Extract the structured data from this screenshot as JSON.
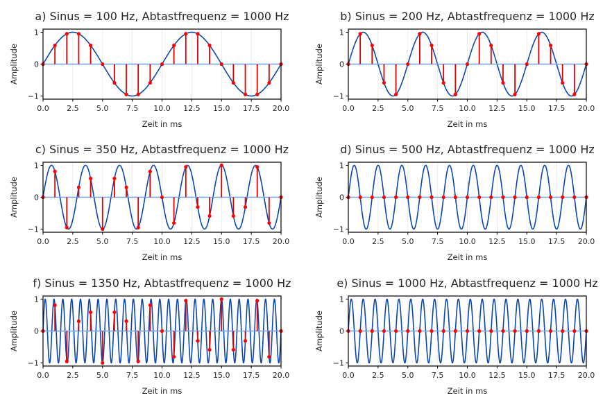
{
  "figure": {
    "xlabel": "Zeit in ms",
    "ylabel": "Amplitude",
    "colors": {
      "sine": "#0a47b0",
      "stem": "#e00000",
      "marker": "#ff0000",
      "baseline": "#6fa0e0",
      "grid": "#e8e8e8",
      "axis": "#000000"
    }
  },
  "chart_data": [
    {
      "type": "line",
      "title": "a) Sinus = 100 Hz, Abtastfrequenz = 1000 Hz",
      "signal_hz": 100,
      "sample_rate_hz": 1000,
      "xlabel": "Zeit in ms",
      "ylabel": "Amplitude",
      "xlim": [
        0,
        20
      ],
      "ylim": [
        -1,
        1
      ],
      "xticks": [
        "0.0",
        "2.5",
        "5.0",
        "7.5",
        "10.0",
        "12.5",
        "15.0",
        "17.5",
        "20.0"
      ],
      "yticks": [
        "1",
        "0",
        "−1"
      ],
      "samples_x_ms": [
        0,
        1,
        2,
        3,
        4,
        5,
        6,
        7,
        8,
        9,
        10,
        11,
        12,
        13,
        14,
        15,
        16,
        17,
        18,
        19,
        20
      ],
      "samples_y": [
        0,
        0.588,
        0.951,
        0.951,
        0.588,
        0,
        -0.588,
        -0.951,
        -0.951,
        -0.588,
        0,
        0.588,
        0.951,
        0.951,
        0.588,
        0,
        -0.588,
        -0.951,
        -0.951,
        -0.588,
        0
      ],
      "grid": true
    },
    {
      "type": "line",
      "title": "b) Sinus = 200 Hz, Abtastfrequenz = 1000 Hz",
      "signal_hz": 200,
      "sample_rate_hz": 1000,
      "xlabel": "Zeit in ms",
      "ylabel": "Amplitude",
      "xlim": [
        0,
        20
      ],
      "ylim": [
        -1,
        1
      ],
      "xticks": [
        "0.0",
        "2.5",
        "5.0",
        "7.5",
        "10.0",
        "12.5",
        "15.0",
        "17.5",
        "20.0"
      ],
      "yticks": [
        "1",
        "0",
        "−1"
      ],
      "samples_x_ms": [
        0,
        1,
        2,
        3,
        4,
        5,
        6,
        7,
        8,
        9,
        10,
        11,
        12,
        13,
        14,
        15,
        16,
        17,
        18,
        19,
        20
      ],
      "samples_y": [
        0,
        0.951,
        0.588,
        -0.588,
        -0.951,
        0,
        0.951,
        0.588,
        -0.588,
        -0.951,
        0,
        0.951,
        0.588,
        -0.588,
        -0.951,
        0,
        0.951,
        0.588,
        -0.588,
        -0.951,
        0
      ],
      "grid": true
    },
    {
      "type": "line",
      "title": "c) Sinus = 350 Hz, Abtastfrequenz = 1000 Hz",
      "signal_hz": 350,
      "sample_rate_hz": 1000,
      "xlabel": "Zeit in ms",
      "ylabel": "Amplitude",
      "xlim": [
        0,
        20
      ],
      "ylim": [
        -1,
        1
      ],
      "xticks": [
        "0.0",
        "2.5",
        "5.0",
        "7.5",
        "10.0",
        "12.5",
        "15.0",
        "17.5",
        "20.0"
      ],
      "yticks": [
        "1",
        "0",
        "−1"
      ],
      "samples_x_ms": [
        0,
        1,
        2,
        3,
        4,
        5,
        6,
        7,
        8,
        9,
        10,
        11,
        12,
        13,
        14,
        15,
        16,
        17,
        18,
        19,
        20
      ],
      "samples_y": [
        0,
        0.809,
        -0.951,
        0.309,
        0.588,
        -1,
        0.588,
        0.309,
        -0.951,
        0.809,
        0,
        -0.809,
        0.951,
        -0.309,
        -0.588,
        1,
        -0.588,
        -0.309,
        0.951,
        -0.809,
        0
      ],
      "grid": true
    },
    {
      "type": "line",
      "title": "d) Sinus = 500 Hz, Abtastfrequenz = 1000 Hz",
      "signal_hz": 500,
      "sample_rate_hz": 1000,
      "xlabel": "Zeit in ms",
      "ylabel": "Amplitude",
      "xlim": [
        0,
        20
      ],
      "ylim": [
        -1,
        1
      ],
      "xticks": [
        "0.0",
        "2.5",
        "5.0",
        "7.5",
        "10.0",
        "12.5",
        "15.0",
        "17.5",
        "20.0"
      ],
      "yticks": [
        "1",
        "0",
        "−1"
      ],
      "samples_x_ms": [
        0,
        1,
        2,
        3,
        4,
        5,
        6,
        7,
        8,
        9,
        10,
        11,
        12,
        13,
        14,
        15,
        16,
        17,
        18,
        19,
        20
      ],
      "samples_y": [
        0,
        0,
        0,
        0,
        0,
        0,
        0,
        0,
        0,
        0,
        0,
        0,
        0,
        0,
        0,
        0,
        0,
        0,
        0,
        0,
        0
      ],
      "grid": true
    },
    {
      "type": "line",
      "title": "f) Sinus = 1350 Hz, Abtastfrequenz = 1000 Hz",
      "signal_hz": 1350,
      "sample_rate_hz": 1000,
      "xlabel": "Zeit in ms",
      "ylabel": "Amplitude",
      "xlim": [
        0,
        20
      ],
      "ylim": [
        -1,
        1
      ],
      "xticks": [
        "0.0",
        "2.5",
        "5.0",
        "7.5",
        "10.0",
        "12.5",
        "15.0",
        "17.5",
        "20.0"
      ],
      "yticks": [
        "1",
        "0",
        "−1"
      ],
      "samples_x_ms": [
        0,
        1,
        2,
        3,
        4,
        5,
        6,
        7,
        8,
        9,
        10,
        11,
        12,
        13,
        14,
        15,
        16,
        17,
        18,
        19,
        20
      ],
      "samples_y": [
        0,
        0.809,
        -0.951,
        0.309,
        0.588,
        -1,
        0.588,
        0.309,
        -0.951,
        0.809,
        0,
        -0.809,
        0.951,
        -0.309,
        -0.588,
        1,
        -0.588,
        -0.309,
        0.951,
        -0.809,
        0
      ],
      "grid": true
    },
    {
      "type": "line",
      "title": "e) Sinus = 1000 Hz, Abtastfrequenz = 1000 Hz",
      "signal_hz": 1000,
      "sample_rate_hz": 1000,
      "xlabel": "Zeit in ms",
      "ylabel": "Amplitude",
      "xlim": [
        0,
        20
      ],
      "ylim": [
        -1,
        1
      ],
      "xticks": [
        "0.0",
        "2.5",
        "5.0",
        "7.5",
        "10.0",
        "12.5",
        "15.0",
        "17.5",
        "20.0"
      ],
      "yticks": [
        "1",
        "0",
        "−1"
      ],
      "samples_x_ms": [
        0,
        1,
        2,
        3,
        4,
        5,
        6,
        7,
        8,
        9,
        10,
        11,
        12,
        13,
        14,
        15,
        16,
        17,
        18,
        19,
        20
      ],
      "samples_y": [
        0,
        0,
        0,
        0,
        0,
        0,
        0,
        0,
        0,
        0,
        0,
        0,
        0,
        0,
        0,
        0,
        0,
        0,
        0,
        0,
        0
      ],
      "grid": true
    }
  ]
}
